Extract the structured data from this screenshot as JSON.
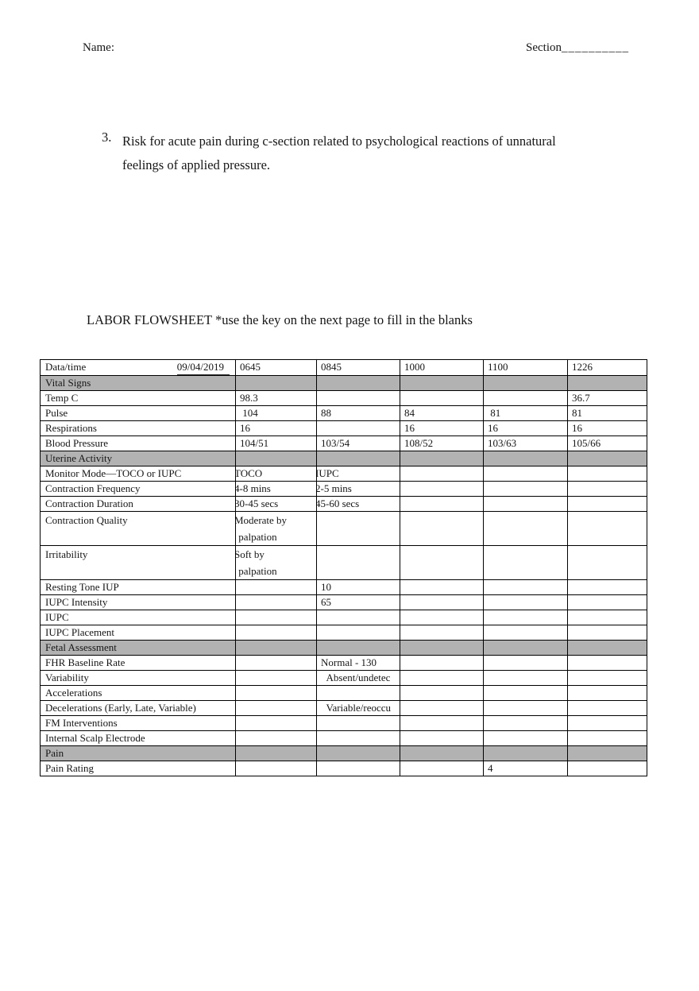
{
  "page": {
    "name_label": "Name:",
    "section_label": "Section",
    "section_blank": "__________",
    "list_item": {
      "number": "3.",
      "line1": "Risk for acute pain during c-section related to psychological reactions of unnatural",
      "line2": "feelings of applied pressure."
    },
    "flowsheet_title": "LABOR FLOWSHEET *use the key on the next page to fill in the blanks"
  },
  "table": {
    "section_bg": "#b2b2b2",
    "header": {
      "label": "Data/time",
      "date": "09/04/2019",
      "times": [
        "0645",
        "0845",
        "1000",
        "1100",
        "1226"
      ]
    },
    "rows": [
      {
        "label": "Vital Signs",
        "type": "section",
        "cells": [
          "",
          "",
          "",
          "",
          ""
        ]
      },
      {
        "label": "Temp C",
        "cells": [
          "98.3",
          "",
          "",
          "",
          "36.7"
        ]
      },
      {
        "label": "Pulse",
        "cells": [
          " 104",
          "88",
          "84",
          " 81",
          "81"
        ]
      },
      {
        "label": "Respirations",
        "cells": [
          "16",
          "",
          "16",
          "16",
          "16"
        ]
      },
      {
        "label": "Blood Pressure",
        "cells": [
          "104/51",
          "103/54",
          "108/52",
          "103/63",
          "105/66"
        ]
      },
      {
        "label": "Uterine Activity",
        "type": "section",
        "cells": [
          "",
          "",
          "",
          "",
          ""
        ]
      },
      {
        "label": "Monitor Mode—TOCO or IUPC",
        "overlap": true,
        "cells": [
          "TOCO",
          "IUPC",
          "",
          "",
          ""
        ]
      },
      {
        "label": "Contraction Frequency",
        "overlap": true,
        "cells": [
          "4-8 mins",
          "2-5 mins",
          "",
          "",
          ""
        ]
      },
      {
        "label": "Contraction Duration",
        "overlap": true,
        "cells": [
          "30-45 secs",
          "45-60 secs",
          "",
          "",
          ""
        ]
      },
      {
        "label": "Contraction Quality",
        "overlap": true,
        "cells": [
          "Moderate by\n palpation",
          "",
          "",
          "",
          ""
        ]
      },
      {
        "label": "Irritability",
        "overlap": true,
        "cells": [
          "Soft by\n palpation",
          "",
          "",
          "",
          ""
        ]
      },
      {
        "label": "Resting Tone IUP",
        "cells": [
          "",
          "10",
          "",
          "",
          ""
        ]
      },
      {
        "label": "IUPC Intensity",
        "cells": [
          "",
          "65",
          "",
          "",
          ""
        ]
      },
      {
        "label": "IUPC",
        "cells": [
          "",
          "",
          "",
          "",
          ""
        ]
      },
      {
        "label": "IUPC Placement",
        "cells": [
          "",
          "",
          "",
          "",
          ""
        ]
      },
      {
        "label": "Fetal Assessment",
        "type": "section",
        "cells": [
          "",
          "",
          "",
          "",
          ""
        ]
      },
      {
        "label": "FHR Baseline Rate",
        "cells": [
          "",
          "Normal - 130",
          "",
          "",
          ""
        ]
      },
      {
        "label": "Variability",
        "cells": [
          "",
          "  Absent/undetec",
          "",
          "",
          ""
        ]
      },
      {
        "label": "Accelerations",
        "cells": [
          "",
          "",
          "",
          "",
          ""
        ]
      },
      {
        "label": "Decelerations (Early, Late, Variable)",
        "cells": [
          "",
          "  Variable/reoccu",
          "",
          "",
          ""
        ]
      },
      {
        "label": "FM Interventions",
        "cells": [
          "",
          "",
          "",
          "",
          ""
        ]
      },
      {
        "label": "Internal Scalp Electrode",
        "cells": [
          "",
          "",
          "",
          "",
          ""
        ]
      },
      {
        "label": "Pain",
        "type": "section",
        "cells": [
          "",
          "",
          "",
          "",
          ""
        ]
      },
      {
        "label": "Pain Rating",
        "cells": [
          "",
          "",
          "",
          "4",
          ""
        ]
      }
    ]
  }
}
